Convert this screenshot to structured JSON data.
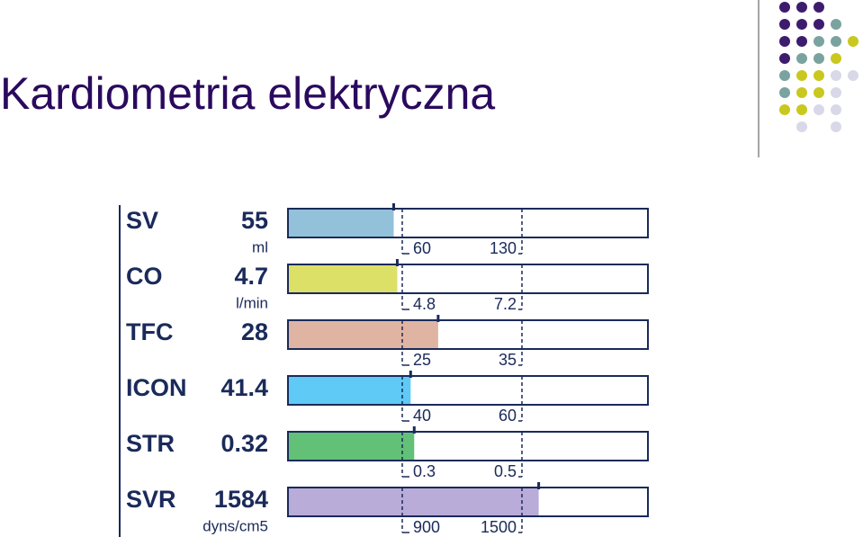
{
  "header": {
    "title": "Kardiometria elektryczna"
  },
  "panel": {
    "rows": [
      {
        "name": "SV",
        "value": 55,
        "unit": "ml",
        "low": 60,
        "high": 130,
        "color": "#93c1d9"
      },
      {
        "name": "CO",
        "value": 4.7,
        "unit": "l/min",
        "low": 4.8,
        "high": 7.2,
        "color": "#dce067"
      },
      {
        "name": "TFC",
        "value": 28,
        "low": 25,
        "high": 35,
        "color": "#e0b4a2"
      },
      {
        "name": "ICON",
        "value": 41.4,
        "low": 40,
        "high": 60,
        "color": "#5ecaf5"
      },
      {
        "name": "STR",
        "value": 0.32,
        "low": 0.3,
        "high": 0.5,
        "color": "#62c077"
      },
      {
        "name": "SVR",
        "value": 1584,
        "unit": "dyns/cm5",
        "low": 900,
        "high": 1500,
        "color": "#b9acd8"
      }
    ]
  }
}
